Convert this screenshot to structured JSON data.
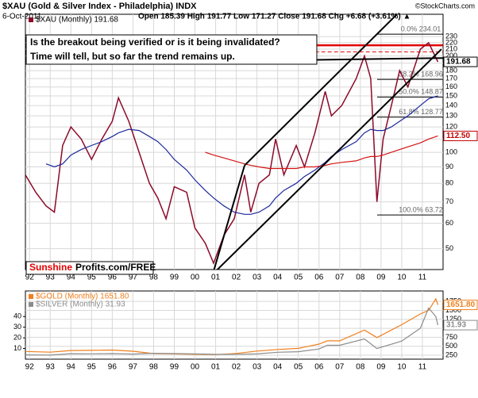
{
  "chart_data": [
    {
      "type": "line",
      "title": "$XAU (Gold & Silver Index - Philadelphia) INDX",
      "date": "6-Oct-2011",
      "quote": "Open 185.39 High 191.77 Low 171.27 Close 191.68 Chg +6.68 (+3.61%) ▲",
      "copyright": "©StockCharts.com",
      "text_box": [
        "Is the breakout being verified or is it being invalidated?",
        "Time will tell, but so far the trend remains up."
      ],
      "brand": [
        "Sunshine",
        "Profits.com/FREE"
      ],
      "log_scale": true,
      "grid": true,
      "xlim": [
        1991.8,
        2012.0
      ],
      "ylim": [
        43,
        270
      ],
      "xticks": [
        {
          "value": 1992,
          "label": "92"
        },
        {
          "value": 1993,
          "label": "93"
        },
        {
          "value": 1994,
          "label": "94"
        },
        {
          "value": 1995,
          "label": "95"
        },
        {
          "value": 1996,
          "label": "96"
        },
        {
          "value": 1997,
          "label": "97"
        },
        {
          "value": 1998,
          "label": "98"
        },
        {
          "value": 1999,
          "label": "99"
        },
        {
          "value": 2000,
          "label": "00"
        },
        {
          "value": 2001,
          "label": "01"
        },
        {
          "value": 2002,
          "label": "02"
        },
        {
          "value": 2003,
          "label": "03"
        },
        {
          "value": 2004,
          "label": "04"
        },
        {
          "value": 2005,
          "label": "05"
        },
        {
          "value": 2006,
          "label": "06"
        },
        {
          "value": 2007,
          "label": "07"
        },
        {
          "value": 2008,
          "label": "08"
        },
        {
          "value": 2009,
          "label": "09"
        },
        {
          "value": 2010,
          "label": "10"
        },
        {
          "value": 2011,
          "label": "11"
        }
      ],
      "yticks": [
        50,
        60,
        70,
        80,
        90,
        100,
        110,
        120,
        130,
        140,
        150,
        160,
        170,
        180,
        190,
        200,
        210,
        220,
        230
      ],
      "x": [
        1991.8,
        1992.3,
        1992.8,
        1993.2,
        1993.6,
        1994.0,
        1994.5,
        1995.0,
        1995.5,
        1996.0,
        1996.3,
        1996.8,
        1997.3,
        1997.8,
        1998.2,
        1998.6,
        1999.0,
        1999.6,
        2000.0,
        2000.5,
        2000.9,
        2001.4,
        2001.9,
        2002.4,
        2002.7,
        2003.1,
        2003.6,
        2003.9,
        2004.3,
        2004.9,
        2005.3,
        2005.8,
        2006.3,
        2006.6,
        2007.1,
        2007.8,
        2008.2,
        2008.5,
        2008.8,
        2009.1,
        2009.5,
        2009.9,
        2010.3,
        2010.9,
        2011.3,
        2011.75
      ],
      "series": [
        {
          "name": "$XAU (Monthly) 191.68",
          "color": "#8b0a2a",
          "values": [
            85,
            75,
            68,
            65,
            105,
            120,
            110,
            95,
            110,
            125,
            148,
            125,
            100,
            80,
            72,
            62,
            78,
            75,
            58,
            52,
            45,
            55,
            62,
            85,
            65,
            80,
            85,
            110,
            85,
            105,
            90,
            115,
            155,
            130,
            140,
            170,
            200,
            170,
            70,
            110,
            140,
            180,
            160,
            210,
            220,
            191.68
          ]
        },
        {
          "color": "#1c2a9c",
          "values": [
            null,
            null,
            92,
            90,
            92,
            98,
            102,
            105,
            108,
            112,
            115,
            118,
            117,
            112,
            108,
            102,
            95,
            88,
            82,
            76,
            72,
            68,
            65,
            64,
            64,
            65,
            68,
            72,
            76,
            80,
            84,
            88,
            93,
            97,
            102,
            108,
            115,
            118,
            117,
            117,
            120,
            125,
            130,
            140,
            147,
            150
          ]
        },
        {
          "color": "#d41414",
          "values": [
            null,
            null,
            null,
            null,
            null,
            null,
            null,
            null,
            null,
            null,
            null,
            null,
            null,
            null,
            null,
            null,
            null,
            null,
            null,
            100,
            98,
            96,
            94,
            92,
            91,
            90,
            89,
            89,
            89,
            89,
            90,
            90,
            91,
            92,
            93,
            94,
            96,
            97,
            97,
            98,
            100,
            102,
            104,
            107,
            110,
            112.5
          ]
        }
      ],
      "trendlines": [
        {
          "color": "#000000",
          "points": [
            [
              2000.86,
              41.6
            ],
            [
              2011.92,
              210
            ]
          ]
        },
        {
          "color": "#000000",
          "points": [
            [
              2002.4,
              91
            ],
            [
              2009.77,
              270
            ]
          ]
        },
        {
          "color": "#000000",
          "points": [
            [
              2000.86,
              41.6
            ],
            [
              2002.4,
              91
            ]
          ]
        },
        {
          "color": "#000000",
          "points": [
            [
              1991.8,
              189
            ],
            [
              2012.0,
              197
            ]
          ]
        }
      ],
      "hlines": [
        {
          "value": 216,
          "color": "#e00000",
          "dash": false,
          "x": [
            2005.5,
            2012.0
          ]
        },
        {
          "value": 206,
          "color": "#e00000",
          "dash": true,
          "x": [
            2005.5,
            2012.0
          ]
        }
      ],
      "fib_levels": [
        {
          "value": 234.01,
          "label": "0.0% 234.01"
        },
        {
          "value": 168.96,
          "label": "38.2% 168.96"
        },
        {
          "value": 148.87,
          "label": "50.0% 148.87"
        },
        {
          "value": 128.77,
          "label": "61.8% 128.77"
        },
        {
          "value": 63.72,
          "label": "100.0% 63.72"
        }
      ],
      "tags": [
        {
          "value": 191.68,
          "color": "#000000"
        },
        {
          "value": 112.5,
          "label": "112.50",
          "color": "#c00000"
        }
      ]
    },
    {
      "type": "line",
      "grid": true,
      "xlim": [
        1991.8,
        2012.0
      ],
      "ylim": [
        140,
        2040
      ],
      "y2lim": [
        0,
        64
      ],
      "xticks": [
        {
          "value": 1992,
          "label": "92"
        },
        {
          "value": 1993,
          "label": "93"
        },
        {
          "value": 1994,
          "label": "94"
        },
        {
          "value": 1995,
          "label": "95"
        },
        {
          "value": 1996,
          "label": "96"
        },
        {
          "value": 1997,
          "label": "97"
        },
        {
          "value": 1998,
          "label": "98"
        },
        {
          "value": 1999,
          "label": "99"
        },
        {
          "value": 2000,
          "label": "00"
        },
        {
          "value": 2001,
          "label": "01"
        },
        {
          "value": 2002,
          "label": "02"
        },
        {
          "value": 2003,
          "label": "03"
        },
        {
          "value": 2004,
          "label": "04"
        },
        {
          "value": 2005,
          "label": "05"
        },
        {
          "value": 2006,
          "label": "06"
        },
        {
          "value": 2007,
          "label": "07"
        },
        {
          "value": 2008,
          "label": "08"
        },
        {
          "value": 2009,
          "label": "09"
        },
        {
          "value": 2010,
          "label": "10"
        },
        {
          "value": 2011,
          "label": "11"
        }
      ],
      "yticks": [
        250,
        500,
        750,
        1000,
        1250,
        1500,
        1750
      ],
      "y2ticks": [
        10,
        20,
        30,
        40
      ],
      "x": [
        1991.8,
        1993,
        1994,
        1995,
        1996,
        1997,
        1998,
        1999,
        2000,
        2001,
        2002,
        2003,
        2004,
        2005,
        2006,
        2006.4,
        2007,
        2008.2,
        2008.8,
        2009.5,
        2010,
        2010.9,
        2011.3,
        2011.65,
        2011.75
      ],
      "series": [
        {
          "name": "$GOLD (Monthly) 1651.80",
          "color": "#f07f1c",
          "values": [
            355,
            335,
            380,
            385,
            395,
            360,
            295,
            285,
            275,
            265,
            300,
            365,
            410,
            440,
            560,
            650,
            650,
            950,
            740,
            950,
            1100,
            1400,
            1500,
            1820,
            1651.8
          ]
        },
        {
          "name": "$SILVER (Monthly) 31.93",
          "color": "#8c8c8c",
          "axis": "y2",
          "values": [
            4,
            3.8,
            5.1,
            5,
            5.2,
            4.8,
            5.5,
            5.2,
            5,
            4.5,
            4.6,
            4.9,
            6.5,
            7,
            9.5,
            13,
            13,
            19,
            10,
            14,
            17,
            29,
            48,
            40,
            31.93
          ]
        }
      ],
      "tags": [
        {
          "value": 1651.8,
          "label": "1651.80",
          "color": "#f07f1c"
        },
        {
          "value": 31.93,
          "color": "#8c8c8c",
          "axis": "y2"
        }
      ]
    }
  ]
}
